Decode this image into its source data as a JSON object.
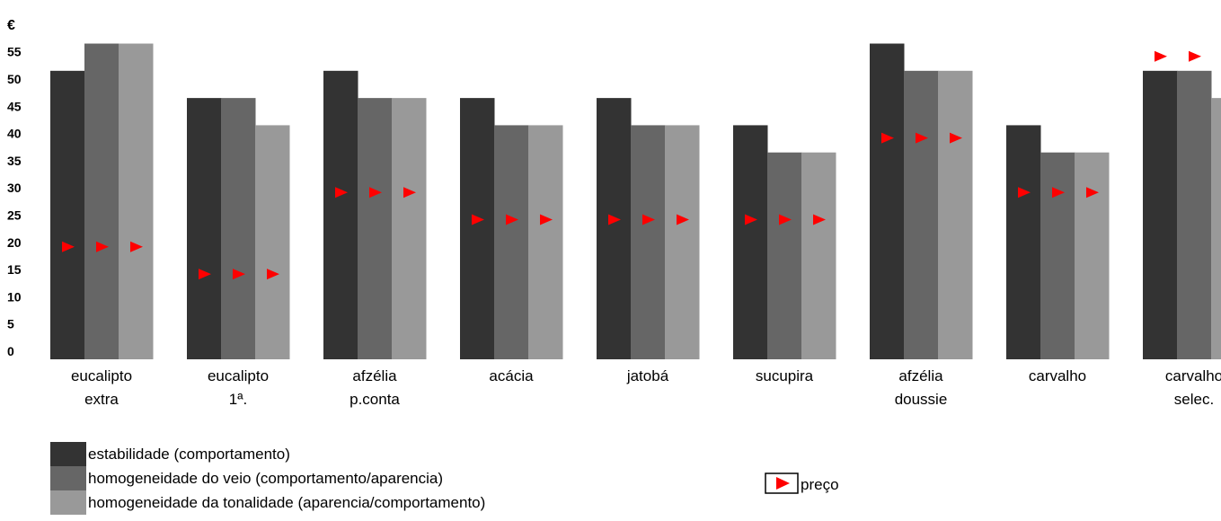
{
  "chart_data": {
    "type": "bar",
    "ylabel": "€",
    "ylim": [
      0,
      58
    ],
    "yticks": [
      0,
      5,
      10,
      15,
      20,
      25,
      30,
      35,
      40,
      45,
      50,
      55
    ],
    "categories": [
      [
        "eucalipto",
        "extra"
      ],
      [
        "eucalipto",
        "1ª."
      ],
      [
        "afzélia",
        "p.conta"
      ],
      [
        "acácia"
      ],
      [
        "jatobá"
      ],
      [
        "sucupira"
      ],
      [
        "afzélia",
        "doussie"
      ],
      [
        "carvalho"
      ],
      [
        "carvalho",
        "selec."
      ]
    ],
    "series": [
      {
        "name": "estabilidade (comportamento)",
        "color": "#333333",
        "values": [
          53,
          48,
          53,
          48,
          48,
          43,
          58,
          43,
          53
        ]
      },
      {
        "name": "homogeneidade do veio (comportamento/aparencia)",
        "color": "#666666",
        "values": [
          58,
          48,
          48,
          43,
          43,
          38,
          53,
          38,
          53
        ]
      },
      {
        "name": "homogeneidade da tonalidade (aparencia/comportamento)",
        "color": "#999999",
        "values": [
          58,
          43,
          48,
          43,
          43,
          38,
          53,
          38,
          48
        ]
      }
    ],
    "marker_series": {
      "name": "preço",
      "color": "#ff0000",
      "values": [
        20,
        15,
        30,
        25,
        25,
        25,
        40,
        30,
        55
      ]
    },
    "legend_position": "bottom"
  }
}
